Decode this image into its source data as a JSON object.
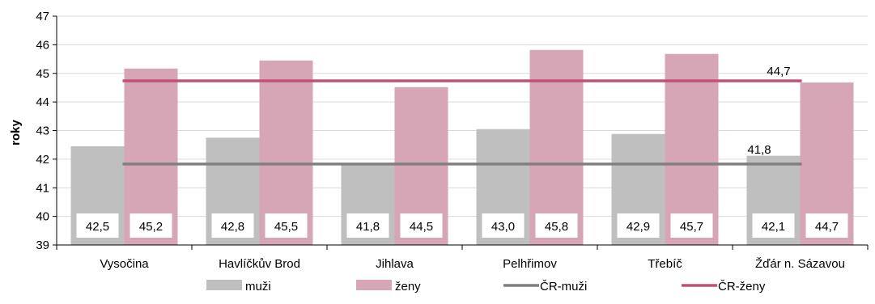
{
  "chart_data": {
    "type": "bar",
    "ylabel": "roky",
    "ylim": [
      39,
      47
    ],
    "yticks": [
      "39",
      "40",
      "41",
      "42",
      "43",
      "44",
      "45",
      "46",
      "47"
    ],
    "categories": [
      "Vysočina",
      "Havlíčkův Brod",
      "Jihlava",
      "Pelhřimov",
      "Třebíč",
      "Žďár n. Sázavou"
    ],
    "series": [
      {
        "name": "muži",
        "color": "#bfbfbf",
        "values": [
          42.45,
          42.75,
          41.85,
          43.05,
          42.88,
          42.12
        ],
        "labels": [
          "42,5",
          "42,8",
          "41,8",
          "43,0",
          "42,9",
          "42,1"
        ]
      },
      {
        "name": "ženy",
        "color": "#d7a6b6",
        "values": [
          45.17,
          45.45,
          44.52,
          45.82,
          45.68,
          44.68
        ],
        "labels": [
          "45,2",
          "45,5",
          "44,5",
          "45,8",
          "45,7",
          "44,7"
        ]
      }
    ],
    "reference_lines": [
      {
        "name": "ČR-muži",
        "value": 41.83,
        "color": "#808080",
        "label": "41,8"
      },
      {
        "name": "ČR-ženy",
        "value": 44.74,
        "color": "#c0507a",
        "label": "44,7"
      }
    ],
    "legend_position": "bottom",
    "grid": true
  }
}
